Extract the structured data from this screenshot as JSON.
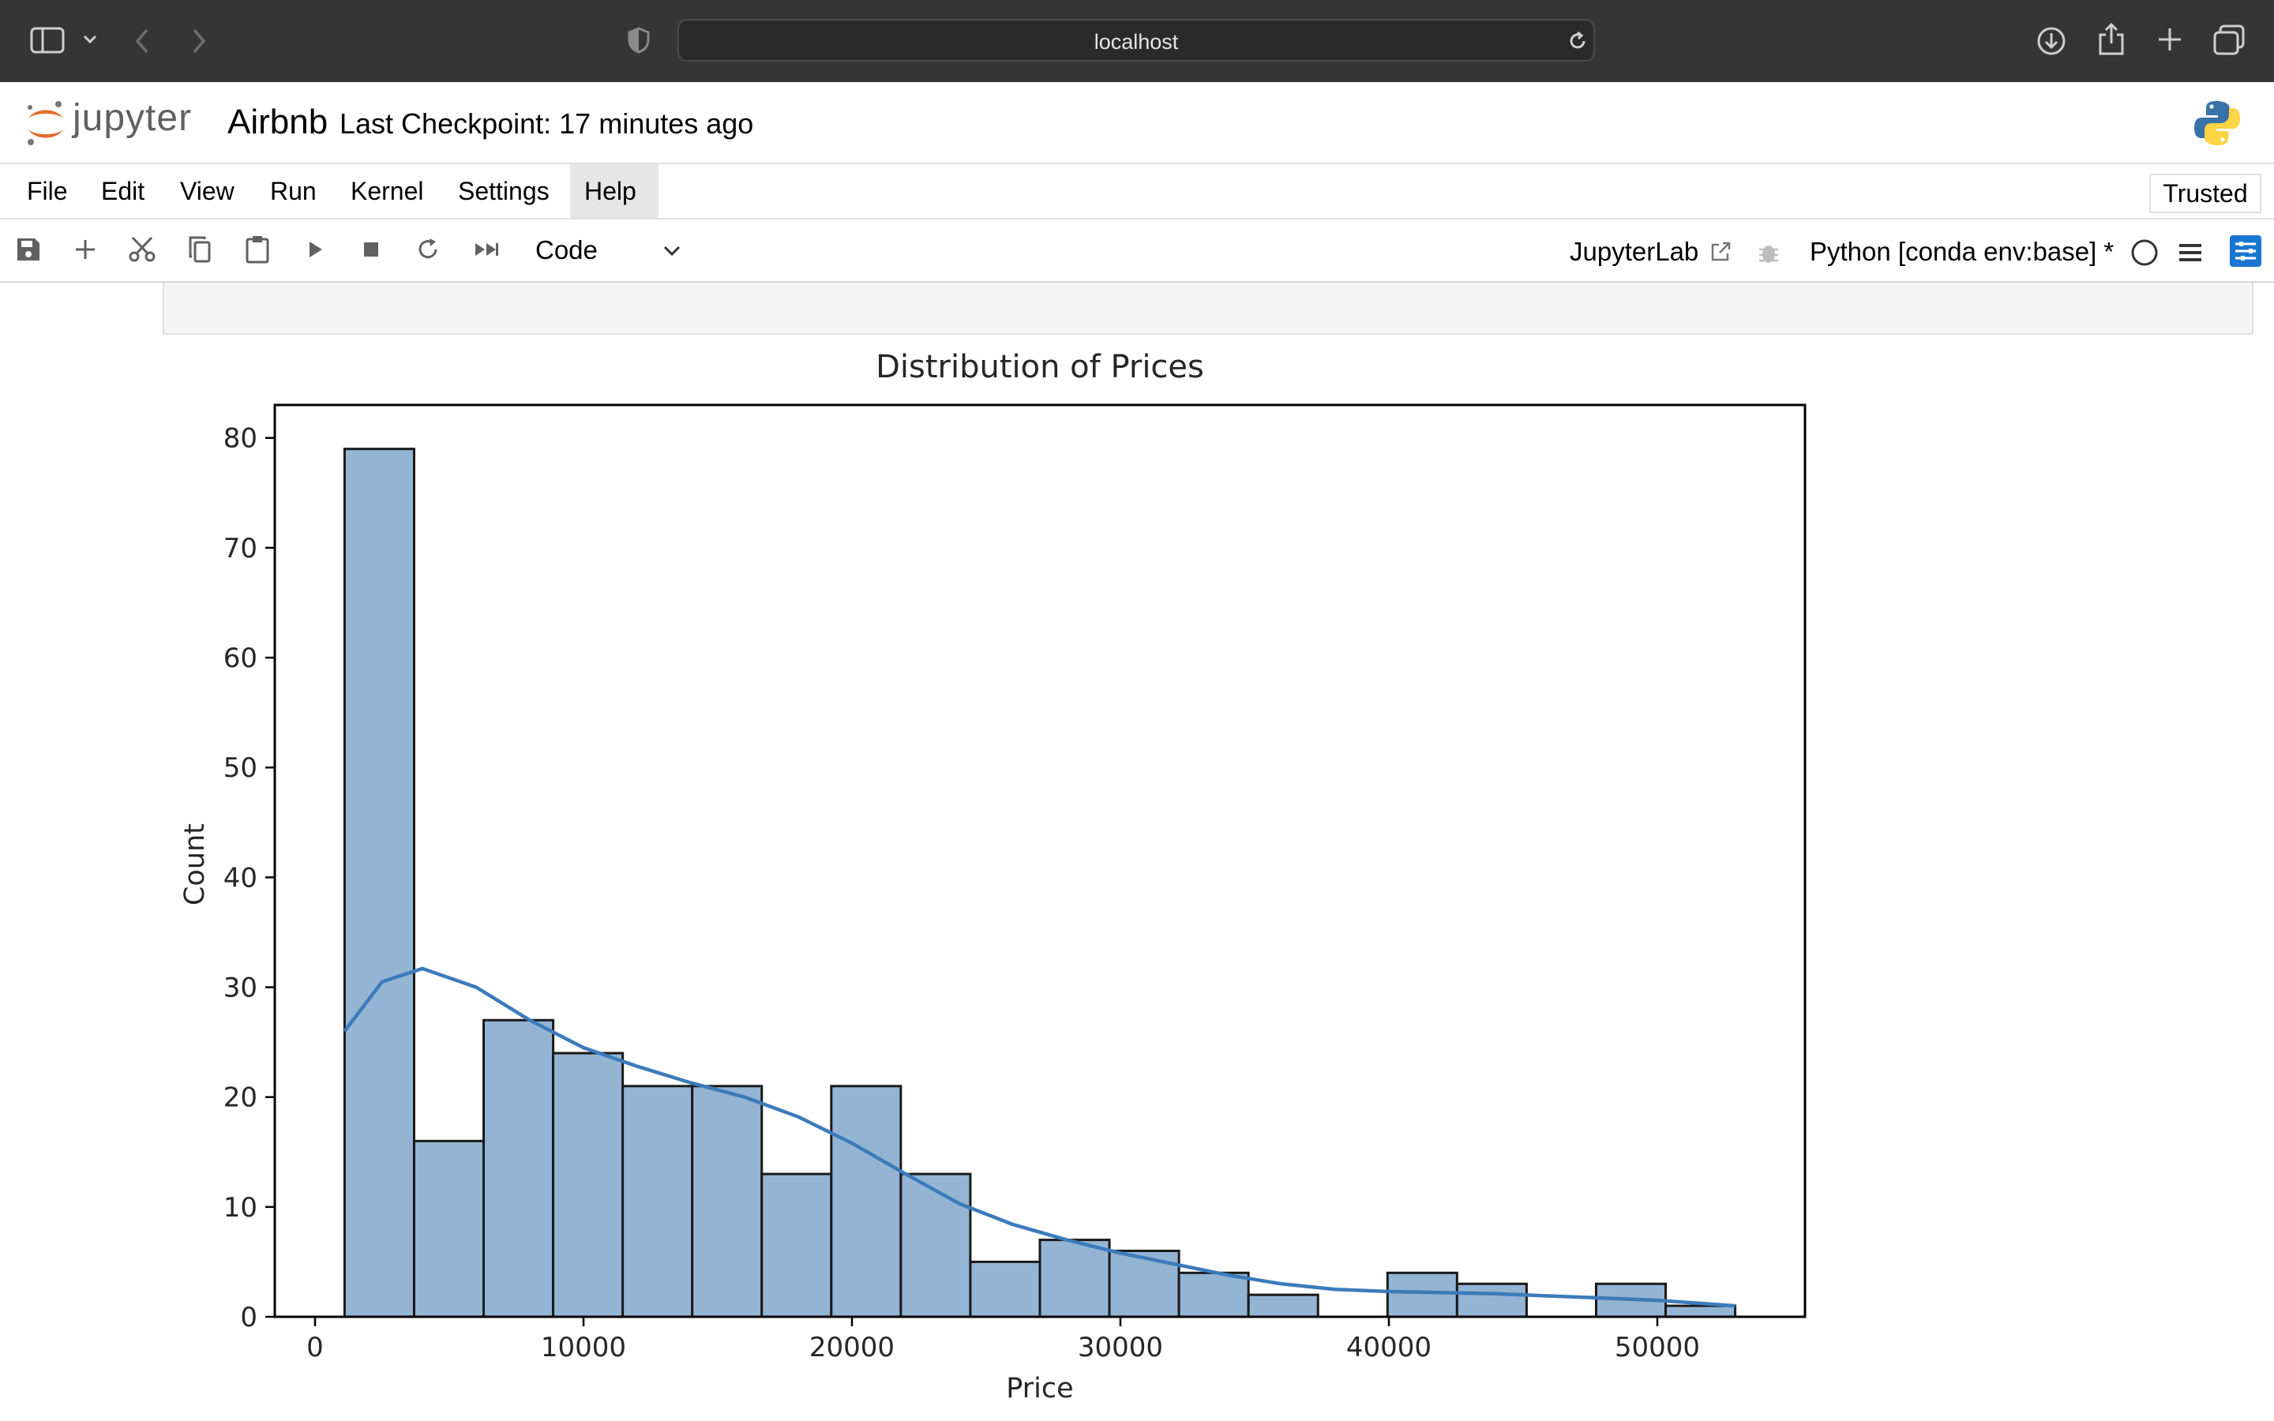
{
  "browser": {
    "address": "localhost"
  },
  "jupyter": {
    "wordmark": "jupyter",
    "notebook_name": "Airbnb",
    "checkpoint": "Last Checkpoint: 17 minutes ago"
  },
  "menu": {
    "items": [
      "File",
      "Edit",
      "View",
      "Run",
      "Kernel",
      "Settings",
      "Help"
    ],
    "trusted": "Trusted"
  },
  "toolbar": {
    "cell_type": "Code",
    "jupyterlab": "JupyterLab",
    "kernel": "Python [conda env:base] *"
  },
  "colors": {
    "bar_fill": "#94b4d4",
    "kde_line": "#3b7bbb",
    "browser_chrome": "#353535",
    "jupyter_orange": "#e46e2e"
  },
  "chart_data": {
    "type": "bar",
    "title": "Distribution of Prices",
    "xlabel": "Price",
    "ylabel": "Count",
    "xlim": [
      -1500,
      55500
    ],
    "ylim": [
      0,
      83
    ],
    "x_ticks": [
      0,
      10000,
      20000,
      30000,
      40000,
      50000
    ],
    "y_ticks": [
      0,
      10,
      20,
      30,
      40,
      50,
      60,
      70,
      80
    ],
    "grid": false,
    "bins": [
      {
        "x0": 1100,
        "x1": 3690,
        "count": 79
      },
      {
        "x0": 3690,
        "x1": 6280,
        "count": 16
      },
      {
        "x0": 6280,
        "x1": 8870,
        "count": 27
      },
      {
        "x0": 8870,
        "x1": 11460,
        "count": 24
      },
      {
        "x0": 11460,
        "x1": 14050,
        "count": 21
      },
      {
        "x0": 14050,
        "x1": 16640,
        "count": 21
      },
      {
        "x0": 16640,
        "x1": 19230,
        "count": 13
      },
      {
        "x0": 19230,
        "x1": 21820,
        "count": 21
      },
      {
        "x0": 21820,
        "x1": 24410,
        "count": 13
      },
      {
        "x0": 24410,
        "x1": 27000,
        "count": 5
      },
      {
        "x0": 27000,
        "x1": 29590,
        "count": 7
      },
      {
        "x0": 29590,
        "x1": 32180,
        "count": 6
      },
      {
        "x0": 32180,
        "x1": 34770,
        "count": 4
      },
      {
        "x0": 34770,
        "x1": 37360,
        "count": 2
      },
      {
        "x0": 37360,
        "x1": 39950,
        "count": 0
      },
      {
        "x0": 39950,
        "x1": 42540,
        "count": 4
      },
      {
        "x0": 42540,
        "x1": 45130,
        "count": 3
      },
      {
        "x0": 45130,
        "x1": 47720,
        "count": 0
      },
      {
        "x0": 47720,
        "x1": 50310,
        "count": 3
      },
      {
        "x0": 50310,
        "x1": 52900,
        "count": 1
      }
    ],
    "kde": {
      "x": [
        1100,
        2500,
        4000,
        6000,
        8000,
        10000,
        12000,
        14000,
        16000,
        18000,
        20000,
        22000,
        24000,
        26000,
        28000,
        30000,
        32000,
        34000,
        36000,
        38000,
        40000,
        42000,
        44000,
        46000,
        48000,
        50000,
        52900
      ],
      "y": [
        26,
        30.5,
        31.7,
        30.0,
        27.0,
        24.5,
        22.8,
        21.3,
        20.0,
        18.2,
        15.8,
        13.0,
        10.3,
        8.4,
        7.0,
        5.8,
        4.8,
        3.8,
        3.0,
        2.5,
        2.3,
        2.2,
        2.1,
        1.9,
        1.7,
        1.5,
        1.0
      ]
    }
  }
}
